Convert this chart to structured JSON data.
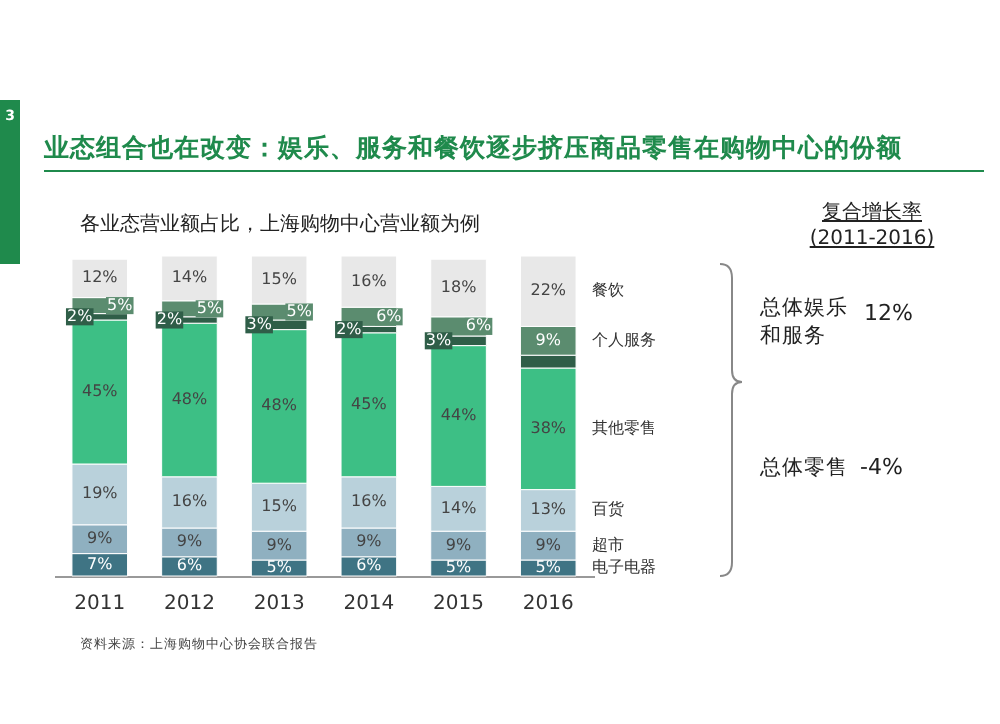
{
  "chart_data": {
    "type": "bar",
    "stacked": true,
    "title": "业态组合也在改变：娱乐、服务和餐饮逐步挤压商品零售在购物中心的份额",
    "subtitle": "各业态营业额占比，上海购物中心营业额为例",
    "categories": [
      "2011",
      "2012",
      "2013",
      "2014",
      "2015",
      "2016"
    ],
    "series": [
      {
        "name": "电子电器",
        "color": "#3f7484",
        "values": [
          7,
          6,
          5,
          6,
          5,
          5
        ],
        "value_labels": [
          "7%",
          "6%",
          "5%",
          "6%",
          "5%",
          "5%"
        ]
      },
      {
        "name": "超市",
        "color": "#8fb0c0",
        "values": [
          9,
          9,
          9,
          9,
          9,
          9
        ],
        "value_labels": [
          "9%",
          "9%",
          "9%",
          "9%",
          "9%",
          "9%"
        ]
      },
      {
        "name": "百货",
        "color": "#b9d1db",
        "values": [
          19,
          16,
          15,
          16,
          14,
          13
        ],
        "value_labels": [
          "19%",
          "16%",
          "15%",
          "16%",
          "14%",
          "13%"
        ]
      },
      {
        "name": "其他零售",
        "color": "#3dbf85",
        "values": [
          45,
          48,
          48,
          45,
          44,
          38
        ],
        "value_labels": [
          "45%",
          "48%",
          "48%",
          "45%",
          "44%",
          "38%"
        ]
      },
      {
        "color": "#2f5e48",
        "values": [
          2,
          2,
          3,
          2,
          3,
          4
        ],
        "value_labels": [
          "2%",
          "2%",
          "3%",
          "2%",
          "3%",
          null
        ]
      },
      {
        "name": "个人服务",
        "color": "#5b8c6f",
        "values": [
          5,
          5,
          5,
          6,
          6,
          9
        ],
        "value_labels": [
          "5%",
          "5%",
          "5%",
          "6%",
          "6%",
          "9%"
        ]
      },
      {
        "name": "餐饮",
        "color": "#e8e8e8",
        "values": [
          12,
          14,
          15,
          16,
          18,
          22
        ],
        "value_labels": [
          "12%",
          "14%",
          "15%",
          "16%",
          "18%",
          "22%"
        ]
      }
    ],
    "annotations": [
      "3",
      "复合增长率 (2011-2016)",
      "总体娱乐和服务",
      "12%",
      "总体零售",
      "-4%",
      "资料来源：上海购物中心协会联合报告"
    ]
  }
}
